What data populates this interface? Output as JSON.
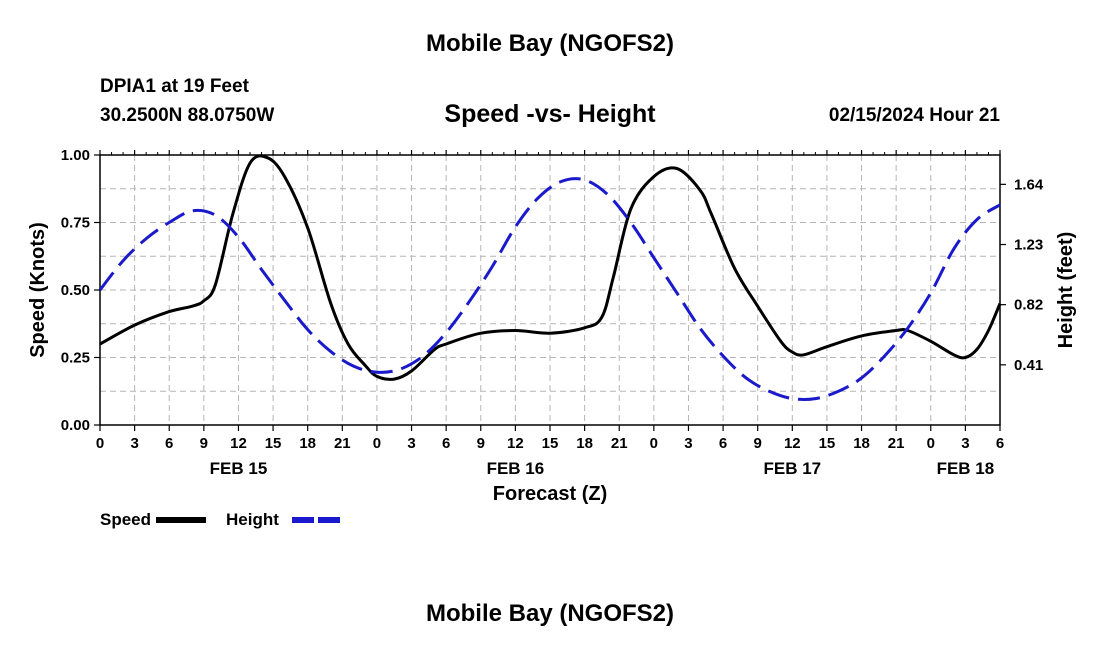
{
  "header": {
    "main_title": "Mobile Bay (NGOFS2)",
    "station": "DPIA1 at 19 Feet",
    "coords": "30.2500N  88.0750W",
    "subtitle": "Speed -vs- Height",
    "datetime": "02/15/2024 Hour 21",
    "bottom_title": "Mobile Bay (NGOFS2)"
  },
  "chart_data": {
    "type": "line",
    "title": "Speed -vs- Height",
    "xlabel": "Forecast (Z)",
    "ylabel": "Speed (Knots)",
    "y2label": "Height (feet)",
    "xlim": [
      0,
      78
    ],
    "ylim": [
      0,
      1.0
    ],
    "y2lim": [
      0.0,
      1.84
    ],
    "x_ticks": [
      0,
      3,
      6,
      9,
      12,
      15,
      18,
      21,
      24,
      27,
      30,
      33,
      36,
      39,
      42,
      45,
      48,
      51,
      54,
      57,
      60,
      63,
      66,
      69,
      72,
      75,
      78
    ],
    "x_tick_labels": [
      "0",
      "3",
      "6",
      "9",
      "12",
      "15",
      "18",
      "21",
      "0",
      "3",
      "6",
      "9",
      "12",
      "15",
      "18",
      "21",
      "0",
      "3",
      "6",
      "9",
      "12",
      "15",
      "18",
      "21",
      "0",
      "3",
      "6"
    ],
    "y_ticks": [
      0,
      0.25,
      0.5,
      0.75,
      1.0
    ],
    "y_tick_labels": [
      "0.00",
      "0.25",
      "0.50",
      "0.75",
      "1.00"
    ],
    "y2_ticks": [
      0.41,
      0.82,
      1.23,
      1.64
    ],
    "y2_tick_labels": [
      "0.41",
      "0.82",
      "1.23",
      "1.64"
    ],
    "date_labels": [
      {
        "x": 12,
        "label": "FEB 15"
      },
      {
        "x": 36,
        "label": "FEB 16"
      },
      {
        "x": 60,
        "label": "FEB 17"
      },
      {
        "x": 75,
        "label": "FEB 18"
      }
    ],
    "grid": true,
    "series": [
      {
        "name": "Speed",
        "axis": "left",
        "color": "#000000",
        "dashed": false,
        "x": [
          0,
          3,
          6,
          8,
          9,
          10,
          11.5,
          13,
          14.5,
          16,
          18,
          20,
          21.5,
          23,
          24,
          25.5,
          27,
          29,
          30,
          33,
          36,
          39,
          42,
          43.5,
          44.5,
          46,
          48,
          50,
          52,
          53,
          55,
          57,
          59,
          60,
          61,
          63,
          66,
          69,
          70,
          72,
          74,
          75,
          76,
          77,
          78
        ],
        "y": [
          0.3,
          0.37,
          0.42,
          0.44,
          0.46,
          0.52,
          0.78,
          0.97,
          0.99,
          0.92,
          0.73,
          0.45,
          0.3,
          0.22,
          0.18,
          0.17,
          0.2,
          0.28,
          0.3,
          0.34,
          0.35,
          0.34,
          0.36,
          0.4,
          0.55,
          0.8,
          0.92,
          0.95,
          0.87,
          0.78,
          0.58,
          0.44,
          0.31,
          0.27,
          0.26,
          0.29,
          0.33,
          0.35,
          0.35,
          0.31,
          0.26,
          0.25,
          0.28,
          0.35,
          0.45
        ]
      },
      {
        "name": "Height",
        "axis": "right",
        "color": "#1a1acc",
        "dashed": true,
        "x": [
          0,
          2,
          4,
          6,
          8,
          10,
          12,
          14,
          16,
          18,
          20,
          22,
          24,
          26,
          28,
          30,
          32,
          34,
          36,
          38,
          40,
          42,
          44,
          46,
          48,
          50,
          52,
          54,
          56,
          58,
          60,
          62,
          64,
          66,
          68,
          70,
          72,
          74,
          76,
          78
        ],
        "y": [
          0.92,
          1.12,
          1.27,
          1.38,
          1.46,
          1.43,
          1.28,
          1.06,
          0.85,
          0.65,
          0.5,
          0.4,
          0.36,
          0.38,
          0.47,
          0.63,
          0.84,
          1.08,
          1.35,
          1.55,
          1.66,
          1.67,
          1.57,
          1.38,
          1.14,
          0.9,
          0.66,
          0.47,
          0.32,
          0.23,
          0.18,
          0.18,
          0.23,
          0.32,
          0.47,
          0.66,
          0.9,
          1.2,
          1.4,
          1.5
        ]
      }
    ],
    "legend": [
      {
        "label": "Speed",
        "color": "#000000",
        "dashed": false
      },
      {
        "label": "Height",
        "color": "#1a1acc",
        "dashed": true
      }
    ],
    "legend_position": "bottom-left"
  }
}
